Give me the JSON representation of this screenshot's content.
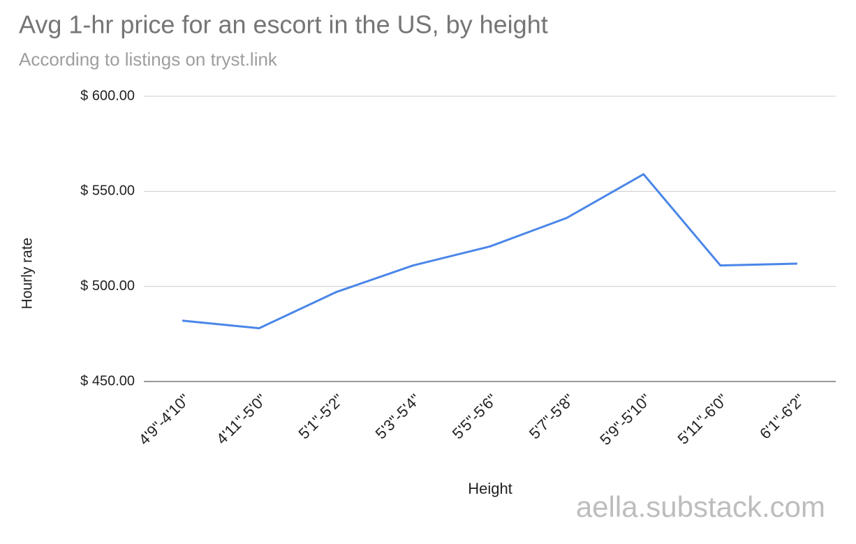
{
  "chart_data": {
    "type": "line",
    "title": "Avg 1-hr price for an escort in the US, by height",
    "subtitle": "According to listings on tryst.link",
    "x_label": "Height",
    "y_label": "Hourly rate",
    "watermark": "aella.substack.com",
    "categories": [
      "4'9\"-4'10\"",
      "4'11\"-5'0\"",
      "5'1\"-5'2\"",
      "5'3\"-5'4\"",
      "5'5\"-5'6\"",
      "5'7\"-5'8\"",
      "5'9\"-5'10\"",
      "5'11\"-6'0\"",
      "6'1\"-6'2\""
    ],
    "series": [
      {
        "name": "Hourly rate",
        "color": "#4a86e8",
        "values": [
          482,
          478,
          497,
          511,
          521,
          536,
          559,
          511,
          512
        ]
      }
    ],
    "ylim": [
      450,
      600
    ],
    "yticks": [
      {
        "value": 450,
        "label": "$ 450.00"
      },
      {
        "value": 500,
        "label": "$ 500.00"
      },
      {
        "value": 550,
        "label": "$ 550.00"
      },
      {
        "value": 600,
        "label": "$ 600.00"
      }
    ],
    "grid": true
  }
}
